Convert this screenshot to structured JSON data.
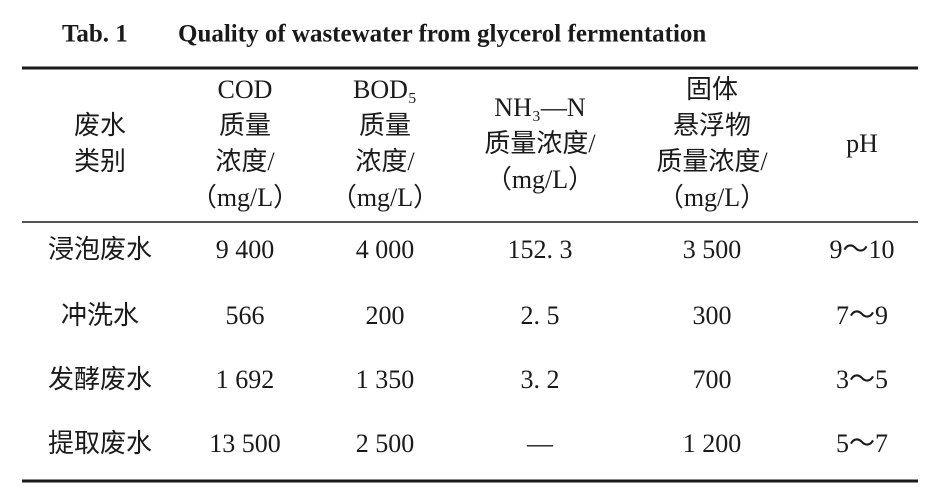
{
  "title": {
    "label": "Tab. 1",
    "text": "Quality of wastewater from glycerol fermentation"
  },
  "table": {
    "header": [
      [
        "废水",
        "类别"
      ],
      [
        "COD",
        "质量",
        "浓度/",
        "（mg/L）"
      ],
      [
        "BOD₅",
        "质量",
        "浓度/",
        "（mg/L）"
      ],
      [
        "NH₃—N",
        "质量浓度/",
        "（mg/L）"
      ],
      [
        "固体",
        "悬浮物",
        "质量浓度/",
        "（mg/L）"
      ],
      [
        "pH"
      ]
    ],
    "rows": [
      [
        "浸泡废水",
        "9 400",
        "4 000",
        "152. 3",
        "3 500",
        "9～10"
      ],
      [
        "冲洗水",
        "566",
        "200",
        "2. 5",
        "300",
        "7～9"
      ],
      [
        "发酵废水",
        "1 692",
        "1 350",
        "3. 2",
        "700",
        "3～5"
      ],
      [
        "提取废水",
        "13 500",
        "2 500",
        "—",
        "1 200",
        "5～7"
      ]
    ]
  }
}
